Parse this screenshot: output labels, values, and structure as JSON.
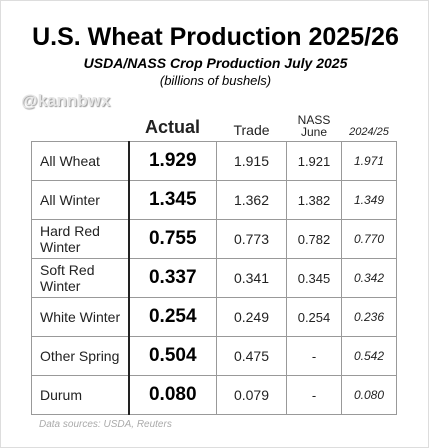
{
  "header": {
    "title": "U.S. Wheat Production 2025/26",
    "subtitle": "USDA/NASS Crop Production July 2025",
    "units": "(billions of bushels)",
    "handle": "@kannbwx"
  },
  "table": {
    "columns": [
      "Actual",
      "Trade",
      "NASS June",
      "2024/25"
    ],
    "rows": [
      [
        "All Wheat",
        "1.929",
        "1.915",
        "1.921",
        "1.971"
      ],
      [
        "All Winter",
        "1.345",
        "1.362",
        "1.382",
        "1.349"
      ],
      [
        "Hard Red Winter",
        "0.755",
        "0.773",
        "0.782",
        "0.770"
      ],
      [
        "Soft Red Winter",
        "0.337",
        "0.341",
        "0.345",
        "0.342"
      ],
      [
        "White Winter",
        "0.254",
        "0.249",
        "0.254",
        "0.236"
      ],
      [
        "Other Spring",
        "0.504",
        "0.475",
        "-",
        "0.542"
      ],
      [
        "Durum",
        "0.080",
        "0.079",
        "-",
        "0.080"
      ]
    ]
  },
  "footer": {
    "source": "Data sources: USDA, Reuters"
  }
}
